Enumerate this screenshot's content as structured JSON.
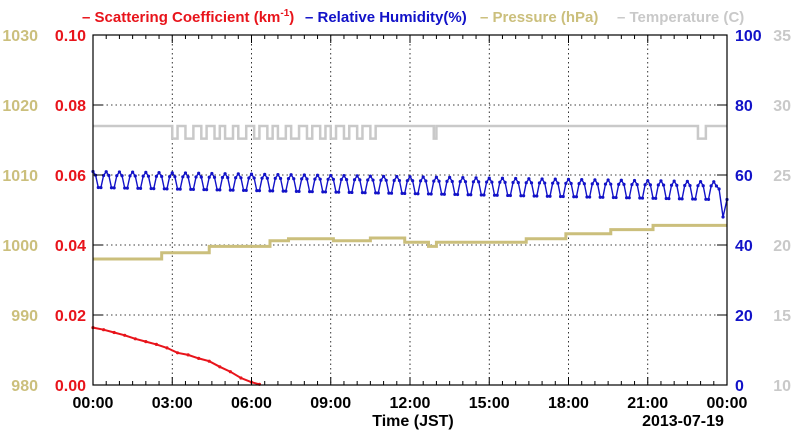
{
  "colors": {
    "scattering": "#e8141b",
    "humidity": "#1212c8",
    "pressure": "#cbbf7c",
    "temperature": "#c9c9c9",
    "axis": "#000000"
  },
  "legend": [
    {
      "prefix": "– ",
      "label": "Scattering Coefficient (km",
      "sup": "-1",
      "suffix": ")",
      "color_key": "scattering"
    },
    {
      "prefix": "– ",
      "label": "Relative Humidity(%)",
      "sup": "",
      "suffix": "",
      "color_key": "humidity"
    },
    {
      "prefix": "– ",
      "label": "Pressure (hPa)",
      "sup": "",
      "suffix": "",
      "color_key": "pressure"
    },
    {
      "prefix": "– ",
      "label": "Temperature (",
      "sup": "",
      "suffix": "C)",
      "color_key": "temperature"
    }
  ],
  "chart_data": {
    "type": "line",
    "xlabel": "Time (JST)",
    "date_label": "2013-07-19",
    "x_ticks": [
      "00:00",
      "03:00",
      "06:00",
      "09:00",
      "12:00",
      "15:00",
      "18:00",
      "21:00",
      "00:00"
    ],
    "x_range_hours": [
      0,
      24
    ],
    "grid": true,
    "axes": {
      "pressure": {
        "side": "left-outer",
        "range": [
          980,
          1030
        ],
        "ticks": [
          "980",
          "990",
          "1000",
          "1010",
          "1020",
          "1030"
        ]
      },
      "scattering": {
        "side": "left-inner",
        "range": [
          0.0,
          0.1
        ],
        "ticks": [
          "0.00",
          "0.02",
          "0.04",
          "0.06",
          "0.08",
          "0.10"
        ]
      },
      "humidity": {
        "side": "right-inner",
        "range": [
          0,
          100
        ],
        "ticks": [
          "0",
          "20",
          "40",
          "60",
          "80",
          "100"
        ]
      },
      "temperature": {
        "side": "right-outer",
        "range": [
          10,
          35
        ],
        "ticks": [
          "10",
          "15",
          "20",
          "25",
          "30",
          "35"
        ]
      }
    },
    "series": [
      {
        "name": "Scattering Coefficient (km-1)",
        "key": "scattering",
        "points": [
          [
            0.0,
            0.0164
          ],
          [
            0.4,
            0.0158
          ],
          [
            0.8,
            0.015
          ],
          [
            1.2,
            0.0142
          ],
          [
            1.6,
            0.0132
          ],
          [
            2.0,
            0.0124
          ],
          [
            2.4,
            0.0116
          ],
          [
            2.8,
            0.0106
          ],
          [
            3.2,
            0.0092
          ],
          [
            3.6,
            0.0086
          ],
          [
            4.0,
            0.0076
          ],
          [
            4.4,
            0.0068
          ],
          [
            4.8,
            0.0052
          ],
          [
            5.2,
            0.0038
          ],
          [
            5.6,
            0.002
          ],
          [
            6.0,
            0.0008
          ],
          [
            6.3,
            0.0002
          ]
        ]
      },
      {
        "name": "Relative Humidity(%)",
        "key": "humidity",
        "oscillation": {
          "high": 61,
          "low": 52,
          "period_hours": 0.5,
          "decline_to": {
            "high": 58,
            "low": 48
          }
        },
        "end_values": [
          [
            23.7,
            56
          ],
          [
            23.85,
            48
          ],
          [
            24.0,
            53
          ]
        ]
      },
      {
        "name": "Pressure (hPa)",
        "key": "pressure",
        "steps": [
          [
            0.0,
            998.0
          ],
          [
            2.6,
            998.9
          ],
          [
            4.4,
            999.8
          ],
          [
            6.7,
            1000.6
          ],
          [
            7.4,
            1000.9
          ],
          [
            9.1,
            1000.6
          ],
          [
            10.5,
            1001.0
          ],
          [
            11.8,
            1000.4
          ],
          [
            12.7,
            999.8
          ],
          [
            13.0,
            1000.4
          ],
          [
            16.4,
            1000.9
          ],
          [
            17.9,
            1001.6
          ],
          [
            19.6,
            1002.2
          ],
          [
            21.2,
            1002.8
          ],
          [
            24.0,
            1002.8
          ]
        ]
      },
      {
        "name": "Temperature (C)",
        "key": "temperature",
        "base": 28.5,
        "dips": [
          [
            3.0,
            3.2
          ],
          [
            3.5,
            3.8
          ],
          [
            4.1,
            4.3
          ],
          [
            4.6,
            4.8
          ],
          [
            5.0,
            5.3
          ],
          [
            5.5,
            5.8
          ],
          [
            6.1,
            6.3
          ],
          [
            6.6,
            6.8
          ],
          [
            7.0,
            7.3
          ],
          [
            7.5,
            7.8
          ],
          [
            8.1,
            8.3
          ],
          [
            8.6,
            8.8
          ],
          [
            9.0,
            9.2
          ],
          [
            9.5,
            9.7
          ],
          [
            10.0,
            10.2
          ],
          [
            10.5,
            10.7
          ],
          [
            12.9,
            13.0
          ],
          [
            22.9,
            23.2
          ]
        ],
        "dip_value": 27.6
      }
    ]
  }
}
